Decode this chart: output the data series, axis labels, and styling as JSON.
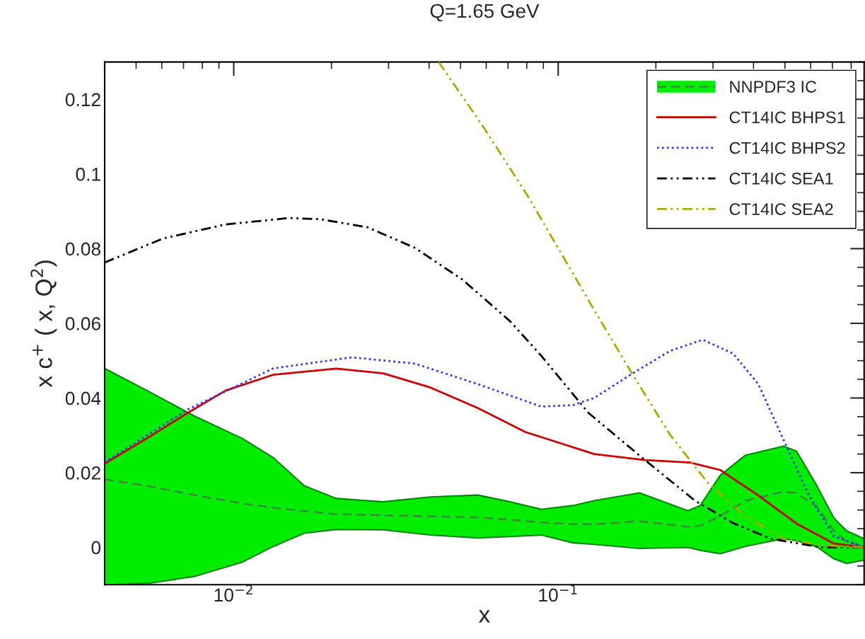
{
  "chart_data": {
    "type": "line",
    "title": "Q=1.65 GeV",
    "xlabel": "x",
    "ylabel": "x c$^{+}$ ( x, Q$^{2}$)",
    "log": "x",
    "xlim": [
      0.004,
      0.877
    ],
    "ylim": [
      -0.01,
      0.13
    ],
    "xticks": [
      {
        "value": 0.01,
        "label": "10$^{−2}$"
      },
      {
        "value": 0.1,
        "label": "10$^{−1}$"
      }
    ],
    "yticks": [
      0,
      0.02,
      0.04,
      0.06,
      0.08,
      0.1,
      0.12
    ],
    "grid": false,
    "legend": "top right",
    "series": [
      {
        "name": "NNPDF3 IC",
        "color": "#3d8a3d",
        "line_style": "dashed",
        "x": [
          0.004,
          0.0054,
          0.00755,
          0.0106,
          0.0132,
          0.0165,
          0.0207,
          0.0289,
          0.0404,
          0.0566,
          0.071,
          0.0887,
          0.111,
          0.129,
          0.178,
          0.251,
          0.274,
          0.316,
          0.378,
          0.495,
          0.542,
          0.626,
          0.708,
          0.775,
          0.877
        ],
        "values": [
          0.0182,
          0.0165,
          0.014,
          0.0118,
          0.0106,
          0.0097,
          0.0089,
          0.0086,
          0.0083,
          0.008,
          0.0074,
          0.0067,
          0.0062,
          0.0062,
          0.007,
          0.0055,
          0.0058,
          0.0084,
          0.0125,
          0.0149,
          0.0145,
          0.011,
          0.0044,
          0.0015,
          0.0003
        ],
        "lower": [
          -0.01,
          -0.0097,
          -0.0078,
          -0.004,
          0.0002,
          0.0038,
          0.0048,
          0.0047,
          0.0033,
          0.0025,
          0.0029,
          0.0033,
          0.0012,
          0.0008,
          -0.0003,
          0.0,
          -0.0008,
          -0.0017,
          0.0003,
          0.0023,
          0.0018,
          0.0002,
          -0.0031,
          -0.0043,
          -0.0034
        ],
        "upper": [
          0.0479,
          0.042,
          0.0352,
          0.0292,
          0.0241,
          0.0165,
          0.0131,
          0.0122,
          0.0135,
          0.014,
          0.0122,
          0.0102,
          0.0112,
          0.0125,
          0.0146,
          0.0098,
          0.0112,
          0.0193,
          0.0247,
          0.0271,
          0.0258,
          0.0166,
          0.0078,
          0.0044,
          0.0023
        ]
      },
      {
        "name": "CT14IC BHPS1",
        "color": "#cc0000",
        "line_style": "solid",
        "x": [
          0.004,
          0.0054,
          0.00721,
          0.00944,
          0.0132,
          0.0207,
          0.0289,
          0.0404,
          0.0566,
          0.0792,
          0.129,
          0.185,
          0.255,
          0.316,
          0.414,
          0.542,
          0.708,
          0.877
        ],
        "values": [
          0.0224,
          0.0292,
          0.036,
          0.042,
          0.0462,
          0.0479,
          0.0466,
          0.0428,
          0.0373,
          0.0309,
          0.025,
          0.0234,
          0.0227,
          0.0207,
          0.0139,
          0.0064,
          0.001,
          0.0
        ]
      },
      {
        "name": "CT14IC BHPS2",
        "color": "#3333ff",
        "line_style": "dotted",
        "x": [
          0.004,
          0.00721,
          0.0132,
          0.0231,
          0.0362,
          0.0566,
          0.0887,
          0.111,
          0.129,
          0.169,
          0.221,
          0.279,
          0.346,
          0.414,
          0.495,
          0.593,
          0.708,
          0.877
        ],
        "values": [
          0.0228,
          0.0369,
          0.0479,
          0.0509,
          0.0492,
          0.0437,
          0.0377,
          0.0381,
          0.04,
          0.0465,
          0.0526,
          0.0556,
          0.0519,
          0.0437,
          0.0288,
          0.0139,
          0.003,
          0.0
        ]
      },
      {
        "name": "CT14IC SEA1",
        "color": "#000000",
        "line_style": "dashdot",
        "x": [
          0.004,
          0.00604,
          0.00944,
          0.0148,
          0.0185,
          0.0259,
          0.0362,
          0.0507,
          0.071,
          0.0887,
          0.124,
          0.185,
          0.264,
          0.346,
          0.453,
          0.645,
          0.877
        ],
        "values": [
          0.0763,
          0.0827,
          0.0865,
          0.0882,
          0.0879,
          0.0857,
          0.0802,
          0.0717,
          0.0606,
          0.0513,
          0.036,
          0.0234,
          0.0125,
          0.0065,
          0.0023,
          0.0,
          0.0
        ]
      },
      {
        "name": "CT14IC SEA2",
        "color": "#aaaa00",
        "line_style": "dashdot",
        "x": [
          0.0428,
          0.0589,
          0.0811,
          0.129,
          0.169,
          0.221,
          0.289,
          0.378,
          0.495,
          0.645,
          0.877
        ],
        "values": [
          0.13,
          0.1125,
          0.0937,
          0.0636,
          0.0465,
          0.0302,
          0.0173,
          0.0084,
          0.0023,
          0.0006,
          0.0
        ]
      }
    ]
  }
}
